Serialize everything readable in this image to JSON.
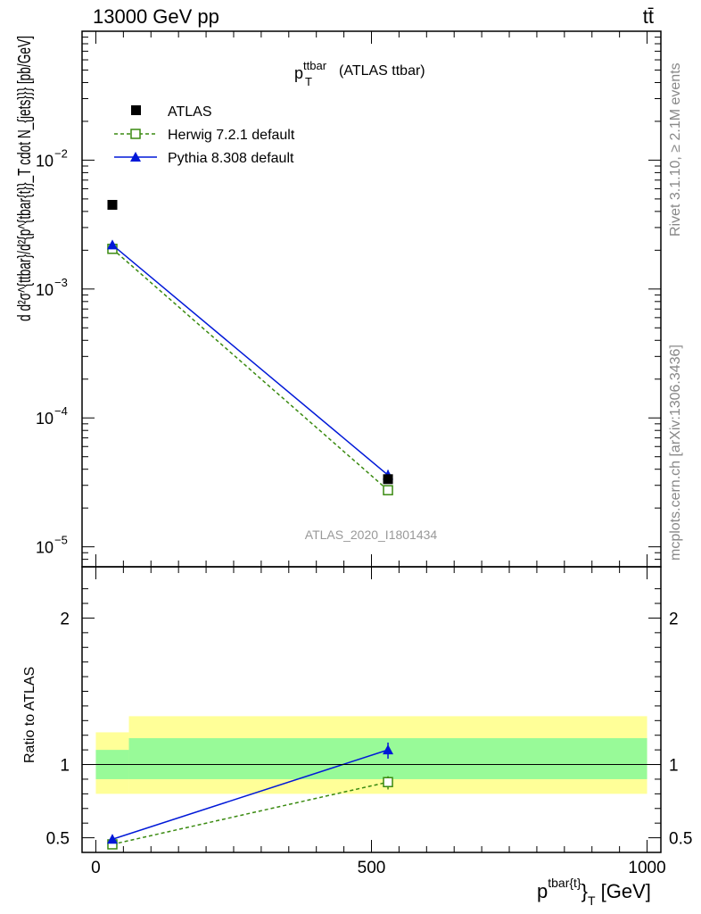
{
  "header": {
    "left": "13000 GeV pp",
    "right": "tt̄"
  },
  "side_labels": {
    "rivet": "Rivet 3.1.10, ≥ 2.1M events",
    "mcplots": "mcplots.cern.ch [arXiv:1306.3436]"
  },
  "watermark": "ATLAS_2020_I1801434",
  "main_title": {
    "base": "p",
    "sup": "ttbar",
    "sub": "T",
    "rest": " (ATLAS ttbar)"
  },
  "ylabel_top": "d d²σ^{ttbar}/d²{p^{tbar{t}}_T cdot N_{jets}}} [pb/GeV]",
  "ylabel_bottom": "Ratio to ATLAS",
  "xlabel": {
    "base": "p",
    "sup": "tbar{t}",
    "tail": "}",
    "sub": "T",
    "rest": " [GeV]"
  },
  "colors": {
    "atlas": "#000000",
    "herwig": "#3a8a10",
    "pythia": "#0018d8",
    "band_inner": "#98fa98",
    "band_outer": "#ffff98"
  },
  "chart_data": [
    {
      "type": "scatter",
      "panel": "main",
      "yscale": "log",
      "xlim": [
        -25,
        1025
      ],
      "ylim": [
        7e-06,
        0.1
      ],
      "y_ticks": [
        {
          "value": 1e-05,
          "label": "10",
          "exp": "−5"
        },
        {
          "value": 0.0001,
          "label": "10",
          "exp": "−4"
        },
        {
          "value": 0.001,
          "label": "10",
          "exp": "−3"
        },
        {
          "value": 0.01,
          "label": "10",
          "exp": "−2"
        }
      ],
      "legend_position": "top-left",
      "series": [
        {
          "name": "ATLAS",
          "style": "square-filled",
          "x": [
            30,
            530
          ],
          "y": [
            0.0045,
            3.35e-05
          ],
          "yerr_hi": [
            0.0047,
            3.5e-05
          ],
          "yerr_lo": [
            0.0043,
            3.2e-05
          ]
        },
        {
          "name": "Herwig 7.2.1 default",
          "style": "square-open-dashed",
          "x": [
            30,
            530
          ],
          "y": [
            0.00205,
            2.75e-05
          ],
          "yerr_hi": [
            0.0021,
            2.95e-05
          ],
          "yerr_lo": [
            0.002,
            2.58e-05
          ]
        },
        {
          "name": "Pythia 8.308 default",
          "style": "triangle-solid",
          "x": [
            30,
            530
          ],
          "y": [
            0.0022,
            3.6e-05
          ],
          "yerr_hi": [
            0.00228,
            3.95e-05
          ],
          "yerr_lo": [
            0.00212,
            3.3e-05
          ]
        }
      ]
    },
    {
      "type": "line",
      "panel": "ratio",
      "xlim": [
        -25,
        1025
      ],
      "ylim": [
        0.4,
        2.35
      ],
      "x_ticks": [
        {
          "value": 0,
          "label": "0"
        },
        {
          "value": 500,
          "label": "500"
        },
        {
          "value": 1000,
          "label": "1000"
        }
      ],
      "y_ticks": [
        {
          "value": 0.5,
          "label": "0.5"
        },
        {
          "value": 1,
          "label": "1"
        },
        {
          "value": 2,
          "label": "2"
        }
      ],
      "bands": [
        {
          "x": [
            0,
            60
          ],
          "outer": [
            0.8,
            1.22
          ],
          "inner": [
            0.9,
            1.1
          ]
        },
        {
          "x": [
            60,
            1000
          ],
          "outer": [
            0.8,
            1.33
          ],
          "inner": [
            0.9,
            1.18
          ]
        }
      ],
      "series": [
        {
          "name": "Herwig 7.2.1 default",
          "style": "square-open-dashed",
          "x": [
            30,
            530
          ],
          "y": [
            0.455,
            0.88
          ],
          "yerr_hi": [
            0.47,
            0.92
          ],
          "yerr_lo": [
            0.44,
            0.83
          ]
        },
        {
          "name": "Pythia 8.308 default",
          "style": "triangle-solid",
          "x": [
            30,
            530
          ],
          "y": [
            0.49,
            1.1
          ],
          "yerr_hi": [
            0.52,
            1.15
          ],
          "yerr_lo": [
            0.475,
            1.04
          ]
        }
      ]
    }
  ]
}
